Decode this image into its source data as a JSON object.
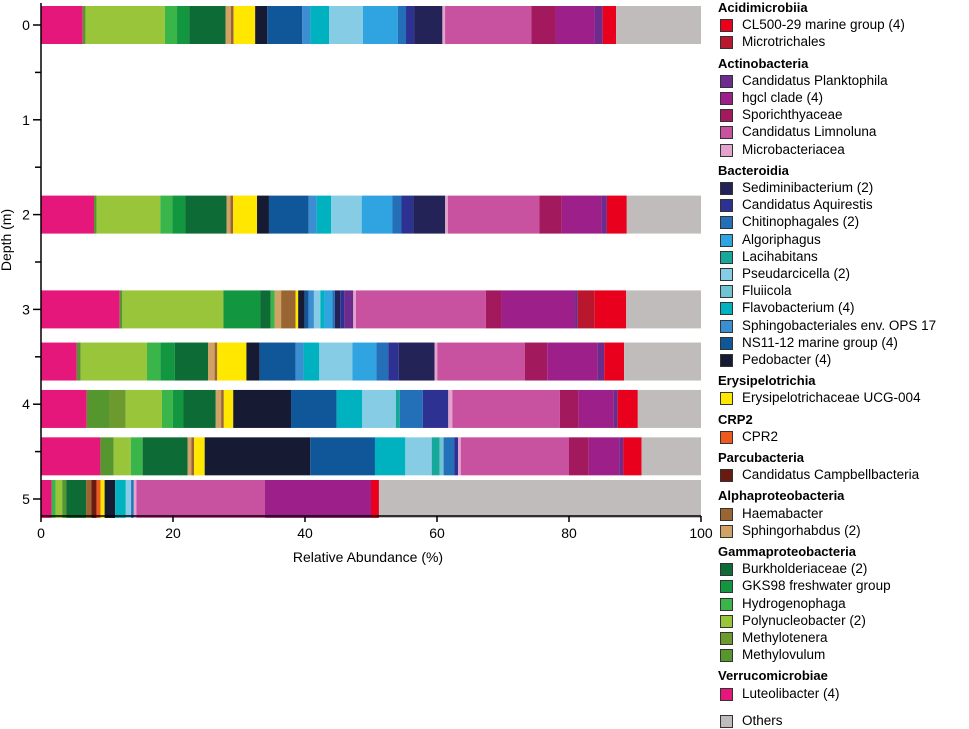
{
  "chart_data": {
    "type": "stacked-horizontal-bar",
    "title": "",
    "xlabel": "Relative Abundance (%)",
    "ylabel": "Depth (m)",
    "xlim": [
      0,
      100
    ],
    "ylim": [
      0,
      5.3
    ],
    "x_ticks": [
      0,
      20,
      40,
      60,
      80,
      100
    ],
    "y_ticks": [
      0,
      1,
      2,
      3,
      4,
      5
    ],
    "legend_position": "right",
    "groups": [
      {
        "name": "Acidimicrobiia",
        "items": [
          {
            "name": "CL500-29 marine group (4)",
            "color": "#e8001c"
          },
          {
            "name": "Microtrichales",
            "color": "#b8172d"
          }
        ]
      },
      {
        "name": "Actinobacteria",
        "items": [
          {
            "name": "Candidatus Planktophila",
            "color": "#6b2c8e"
          },
          {
            "name": "hgcl clade (4)",
            "color": "#9c1f8a"
          },
          {
            "name": "Sporichthyaceae",
            "color": "#a3195e"
          },
          {
            "name": "Candidatus Limnoluna",
            "color": "#c852a0"
          },
          {
            "name": "Microbacteriacea",
            "color": "#e3a3cc"
          }
        ]
      },
      {
        "name": "Bacteroidia",
        "items": [
          {
            "name": "Sediminibacterium (2)",
            "color": "#232357"
          },
          {
            "name": "Candidatus Aquirestis",
            "color": "#2d3191"
          },
          {
            "name": "Chitinophagales (2)",
            "color": "#2470b8"
          },
          {
            "name": "Algoriphagus",
            "color": "#2fa4e0"
          },
          {
            "name": "Lacihabitans",
            "color": "#17a89c"
          },
          {
            "name": "Pseudarcicella (2)",
            "color": "#86cce4"
          },
          {
            "name": "Fluiicola",
            "color": "#6fc3d2"
          },
          {
            "name": "Flavobacterium (4)",
            "color": "#00b2c0"
          },
          {
            "name": "Sphingobacteriales env. OPS 17",
            "color": "#3b8ed2"
          },
          {
            "name": "NS11-12 marine group (4)",
            "color": "#10579a"
          },
          {
            "name": "Pedobacter (4)",
            "color": "#161a33"
          }
        ]
      },
      {
        "name": "Erysipelotrichia",
        "items": [
          {
            "name": "Erysipelotrichaceae UCG-004",
            "color": "#ffe700"
          }
        ]
      },
      {
        "name": "CRP2",
        "items": [
          {
            "name": "CPR2",
            "color": "#ee5a1e"
          }
        ]
      },
      {
        "name": "Parcubacteria",
        "items": [
          {
            "name": "Candidatus Campbellbacteria",
            "color": "#6b1a10"
          }
        ]
      },
      {
        "name": "Alphaproteobacteria",
        "items": [
          {
            "name": "Haemabacter",
            "color": "#996633"
          },
          {
            "name": "Sphingorhabdus (2)",
            "color": "#d0a266"
          }
        ]
      },
      {
        "name": "Gammaproteobacteria",
        "items": [
          {
            "name": "Burkholderiaceae (2)",
            "color": "#0d6b35"
          },
          {
            "name": "GKS98 freshwater group",
            "color": "#139640"
          },
          {
            "name": "Hydrogenophaga",
            "color": "#3ab54a"
          },
          {
            "name": "Polynucleobacter (2)",
            "color": "#99c53b"
          },
          {
            "name": "Methylotenera",
            "color": "#6c9a2e"
          },
          {
            "name": "Methylovulum",
            "color": "#56962f"
          }
        ]
      },
      {
        "name": "Verrucomicrobiae",
        "items": [
          {
            "name": "Luteolibacter (4)",
            "color": "#e6177a"
          }
        ]
      }
    ],
    "others": {
      "name": "Others",
      "color": "#c0bcbc"
    },
    "bars": [
      {
        "depth": 0,
        "segments": [
          [
            "#e6177a",
            6.2
          ],
          [
            "#56962f",
            0.4
          ],
          [
            "#99c53b",
            11.8
          ],
          [
            "#3ab54a",
            1.8
          ],
          [
            "#139640",
            1.8
          ],
          [
            "#0d6b35",
            5.4
          ],
          [
            "#d0a266",
            0.8
          ],
          [
            "#996633",
            0.4
          ],
          [
            "#ffe700",
            3.2
          ],
          [
            "#161a33",
            1.8
          ],
          [
            "#10579a",
            5.2
          ],
          [
            "#3b8ed2",
            1.2
          ],
          [
            "#00b2c0",
            2.8
          ],
          [
            "#86cce4",
            5.0
          ],
          [
            "#2fa4e0",
            5.2
          ],
          [
            "#2470b8",
            1.2
          ],
          [
            "#2d3191",
            1.2
          ],
          [
            "#232357",
            4.2
          ],
          [
            "#e3a3cc",
            0.4
          ],
          [
            "#c852a0",
            12.8
          ],
          [
            "#a3195e",
            3.6
          ],
          [
            "#9c1f8a",
            5.8
          ],
          [
            "#6b2c8e",
            1.2
          ],
          [
            "#e8001c",
            2.0
          ],
          [
            "#c0bcbc",
            12.6
          ]
        ]
      },
      {
        "depth": 2,
        "segments": [
          [
            "#e6177a",
            8.0
          ],
          [
            "#56962f",
            0.4
          ],
          [
            "#99c53b",
            9.6
          ],
          [
            "#3ab54a",
            1.8
          ],
          [
            "#139640",
            2.0
          ],
          [
            "#0d6b35",
            6.2
          ],
          [
            "#d0a266",
            0.6
          ],
          [
            "#996633",
            0.4
          ],
          [
            "#ffe700",
            3.6
          ],
          [
            "#161a33",
            1.8
          ],
          [
            "#10579a",
            6.0
          ],
          [
            "#3b8ed2",
            1.2
          ],
          [
            "#00b2c0",
            2.2
          ],
          [
            "#86cce4",
            4.6
          ],
          [
            "#2fa4e0",
            4.6
          ],
          [
            "#2470b8",
            1.4
          ],
          [
            "#2d3191",
            1.8
          ],
          [
            "#232357",
            4.8
          ],
          [
            "#e3a3cc",
            0.4
          ],
          [
            "#c852a0",
            13.8
          ],
          [
            "#a3195e",
            3.4
          ],
          [
            "#9c1f8a",
            6.0
          ],
          [
            "#6b2c8e",
            0.8
          ],
          [
            "#e8001c",
            3.0
          ],
          [
            "#c0bcbc",
            11.2
          ]
        ]
      },
      {
        "depth": 3,
        "segments": [
          [
            "#e6177a",
            12.0
          ],
          [
            "#56962f",
            0.4
          ],
          [
            "#99c53b",
            15.4
          ],
          [
            "#139640",
            5.6
          ],
          [
            "#0d6b35",
            1.6
          ],
          [
            "#3ab54a",
            0.6
          ],
          [
            "#d0a266",
            1.0
          ],
          [
            "#996633",
            2.2
          ],
          [
            "#ffe700",
            0.4
          ],
          [
            "#161a33",
            1.0
          ],
          [
            "#10579a",
            0.6
          ],
          [
            "#3b8ed2",
            0.8
          ],
          [
            "#86cce4",
            1.0
          ],
          [
            "#00b2c0",
            0.6
          ],
          [
            "#2fa4e0",
            1.2
          ],
          [
            "#2470b8",
            0.4
          ],
          [
            "#232357",
            0.8
          ],
          [
            "#2d3191",
            0.6
          ],
          [
            "#6b2c8e",
            1.4
          ],
          [
            "#e3a3cc",
            0.4
          ],
          [
            "#c852a0",
            19.8
          ],
          [
            "#a3195e",
            2.4
          ],
          [
            "#9c1f8a",
            11.2
          ],
          [
            "#6b2c8e",
            0.4
          ],
          [
            "#b8172d",
            2.6
          ],
          [
            "#e8001c",
            4.8
          ],
          [
            "#c0bcbc",
            11.4
          ]
        ]
      },
      {
        "depth": 3.55,
        "segments": [
          [
            "#e6177a",
            5.4
          ],
          [
            "#56962f",
            0.6
          ],
          [
            "#99c53b",
            10.0
          ],
          [
            "#3ab54a",
            2.0
          ],
          [
            "#139640",
            2.2
          ],
          [
            "#0d6b35",
            5.0
          ],
          [
            "#d0a266",
            1.0
          ],
          [
            "#996633",
            0.4
          ],
          [
            "#ffe700",
            4.4
          ],
          [
            "#161a33",
            2.0
          ],
          [
            "#10579a",
            5.4
          ],
          [
            "#3b8ed2",
            1.2
          ],
          [
            "#00b2c0",
            2.4
          ],
          [
            "#86cce4",
            5.0
          ],
          [
            "#2fa4e0",
            3.6
          ],
          [
            "#2470b8",
            1.8
          ],
          [
            "#2d3191",
            1.6
          ],
          [
            "#232357",
            5.4
          ],
          [
            "#e3a3cc",
            0.4
          ],
          [
            "#c852a0",
            13.2
          ],
          [
            "#a3195e",
            3.4
          ],
          [
            "#9c1f8a",
            7.6
          ],
          [
            "#6b2c8e",
            1.0
          ],
          [
            "#e8001c",
            3.0
          ],
          [
            "#c0bcbc",
            11.6
          ]
        ]
      },
      {
        "depth": 4.05,
        "segments": [
          [
            "#e6177a",
            6.8
          ],
          [
            "#56962f",
            3.4
          ],
          [
            "#6c9a2e",
            2.4
          ],
          [
            "#99c53b",
            5.4
          ],
          [
            "#3ab54a",
            1.6
          ],
          [
            "#139640",
            1.6
          ],
          [
            "#0d6b35",
            4.8
          ],
          [
            "#d0a266",
            0.8
          ],
          [
            "#996633",
            0.4
          ],
          [
            "#ffe700",
            1.4
          ],
          [
            "#161a33",
            8.6
          ],
          [
            "#10579a",
            6.8
          ],
          [
            "#00b2c0",
            3.8
          ],
          [
            "#86cce4",
            5.0
          ],
          [
            "#17a89c",
            0.6
          ],
          [
            "#2470b8",
            3.4
          ],
          [
            "#2d3191",
            3.8
          ],
          [
            "#e3a3cc",
            0.6
          ],
          [
            "#c852a0",
            16.0
          ],
          [
            "#a3195e",
            2.8
          ],
          [
            "#9c1f8a",
            5.2
          ],
          [
            "#6b2c8e",
            0.6
          ],
          [
            "#e8001c",
            3.0
          ],
          [
            "#c0bcbc",
            9.4
          ]
        ]
      },
      {
        "depth": 4.55,
        "segments": [
          [
            "#e6177a",
            9.0
          ],
          [
            "#56962f",
            2.0
          ],
          [
            "#99c53b",
            2.6
          ],
          [
            "#3ab54a",
            1.8
          ],
          [
            "#0d6b35",
            6.8
          ],
          [
            "#d0a266",
            0.6
          ],
          [
            "#996633",
            0.4
          ],
          [
            "#ffe700",
            1.6
          ],
          [
            "#161a33",
            16.0
          ],
          [
            "#10579a",
            9.8
          ],
          [
            "#00b2c0",
            4.6
          ],
          [
            "#86cce4",
            4.0
          ],
          [
            "#17a89c",
            1.2
          ],
          [
            "#6fc3d2",
            0.6
          ],
          [
            "#2470b8",
            1.6
          ],
          [
            "#2d3191",
            0.6
          ],
          [
            "#e3a3cc",
            0.4
          ],
          [
            "#c852a0",
            16.4
          ],
          [
            "#a3195e",
            3.0
          ],
          [
            "#9c1f8a",
            4.6
          ],
          [
            "#6b2c8e",
            0.6
          ],
          [
            "#e8001c",
            2.8
          ],
          [
            "#c0bcbc",
            9.0
          ]
        ]
      },
      {
        "depth": 5.0,
        "segments": [
          [
            "#e6177a",
            1.6
          ],
          [
            "#3ab54a",
            0.6
          ],
          [
            "#99c53b",
            1.0
          ],
          [
            "#56962f",
            0.6
          ],
          [
            "#0d6b35",
            3.0
          ],
          [
            "#996633",
            0.8
          ],
          [
            "#6b1a10",
            0.8
          ],
          [
            "#ee5a1e",
            0.6
          ],
          [
            "#ffe700",
            0.6
          ],
          [
            "#161a33",
            1.6
          ],
          [
            "#00b2c0",
            1.6
          ],
          [
            "#86cce4",
            0.8
          ],
          [
            "#2470b8",
            0.4
          ],
          [
            "#e3a3cc",
            0.4
          ],
          [
            "#c852a0",
            19.4
          ],
          [
            "#9c1f8a",
            16.0
          ],
          [
            "#e8001c",
            1.2
          ],
          [
            "#c0bcbc",
            48.6
          ]
        ]
      }
    ]
  }
}
